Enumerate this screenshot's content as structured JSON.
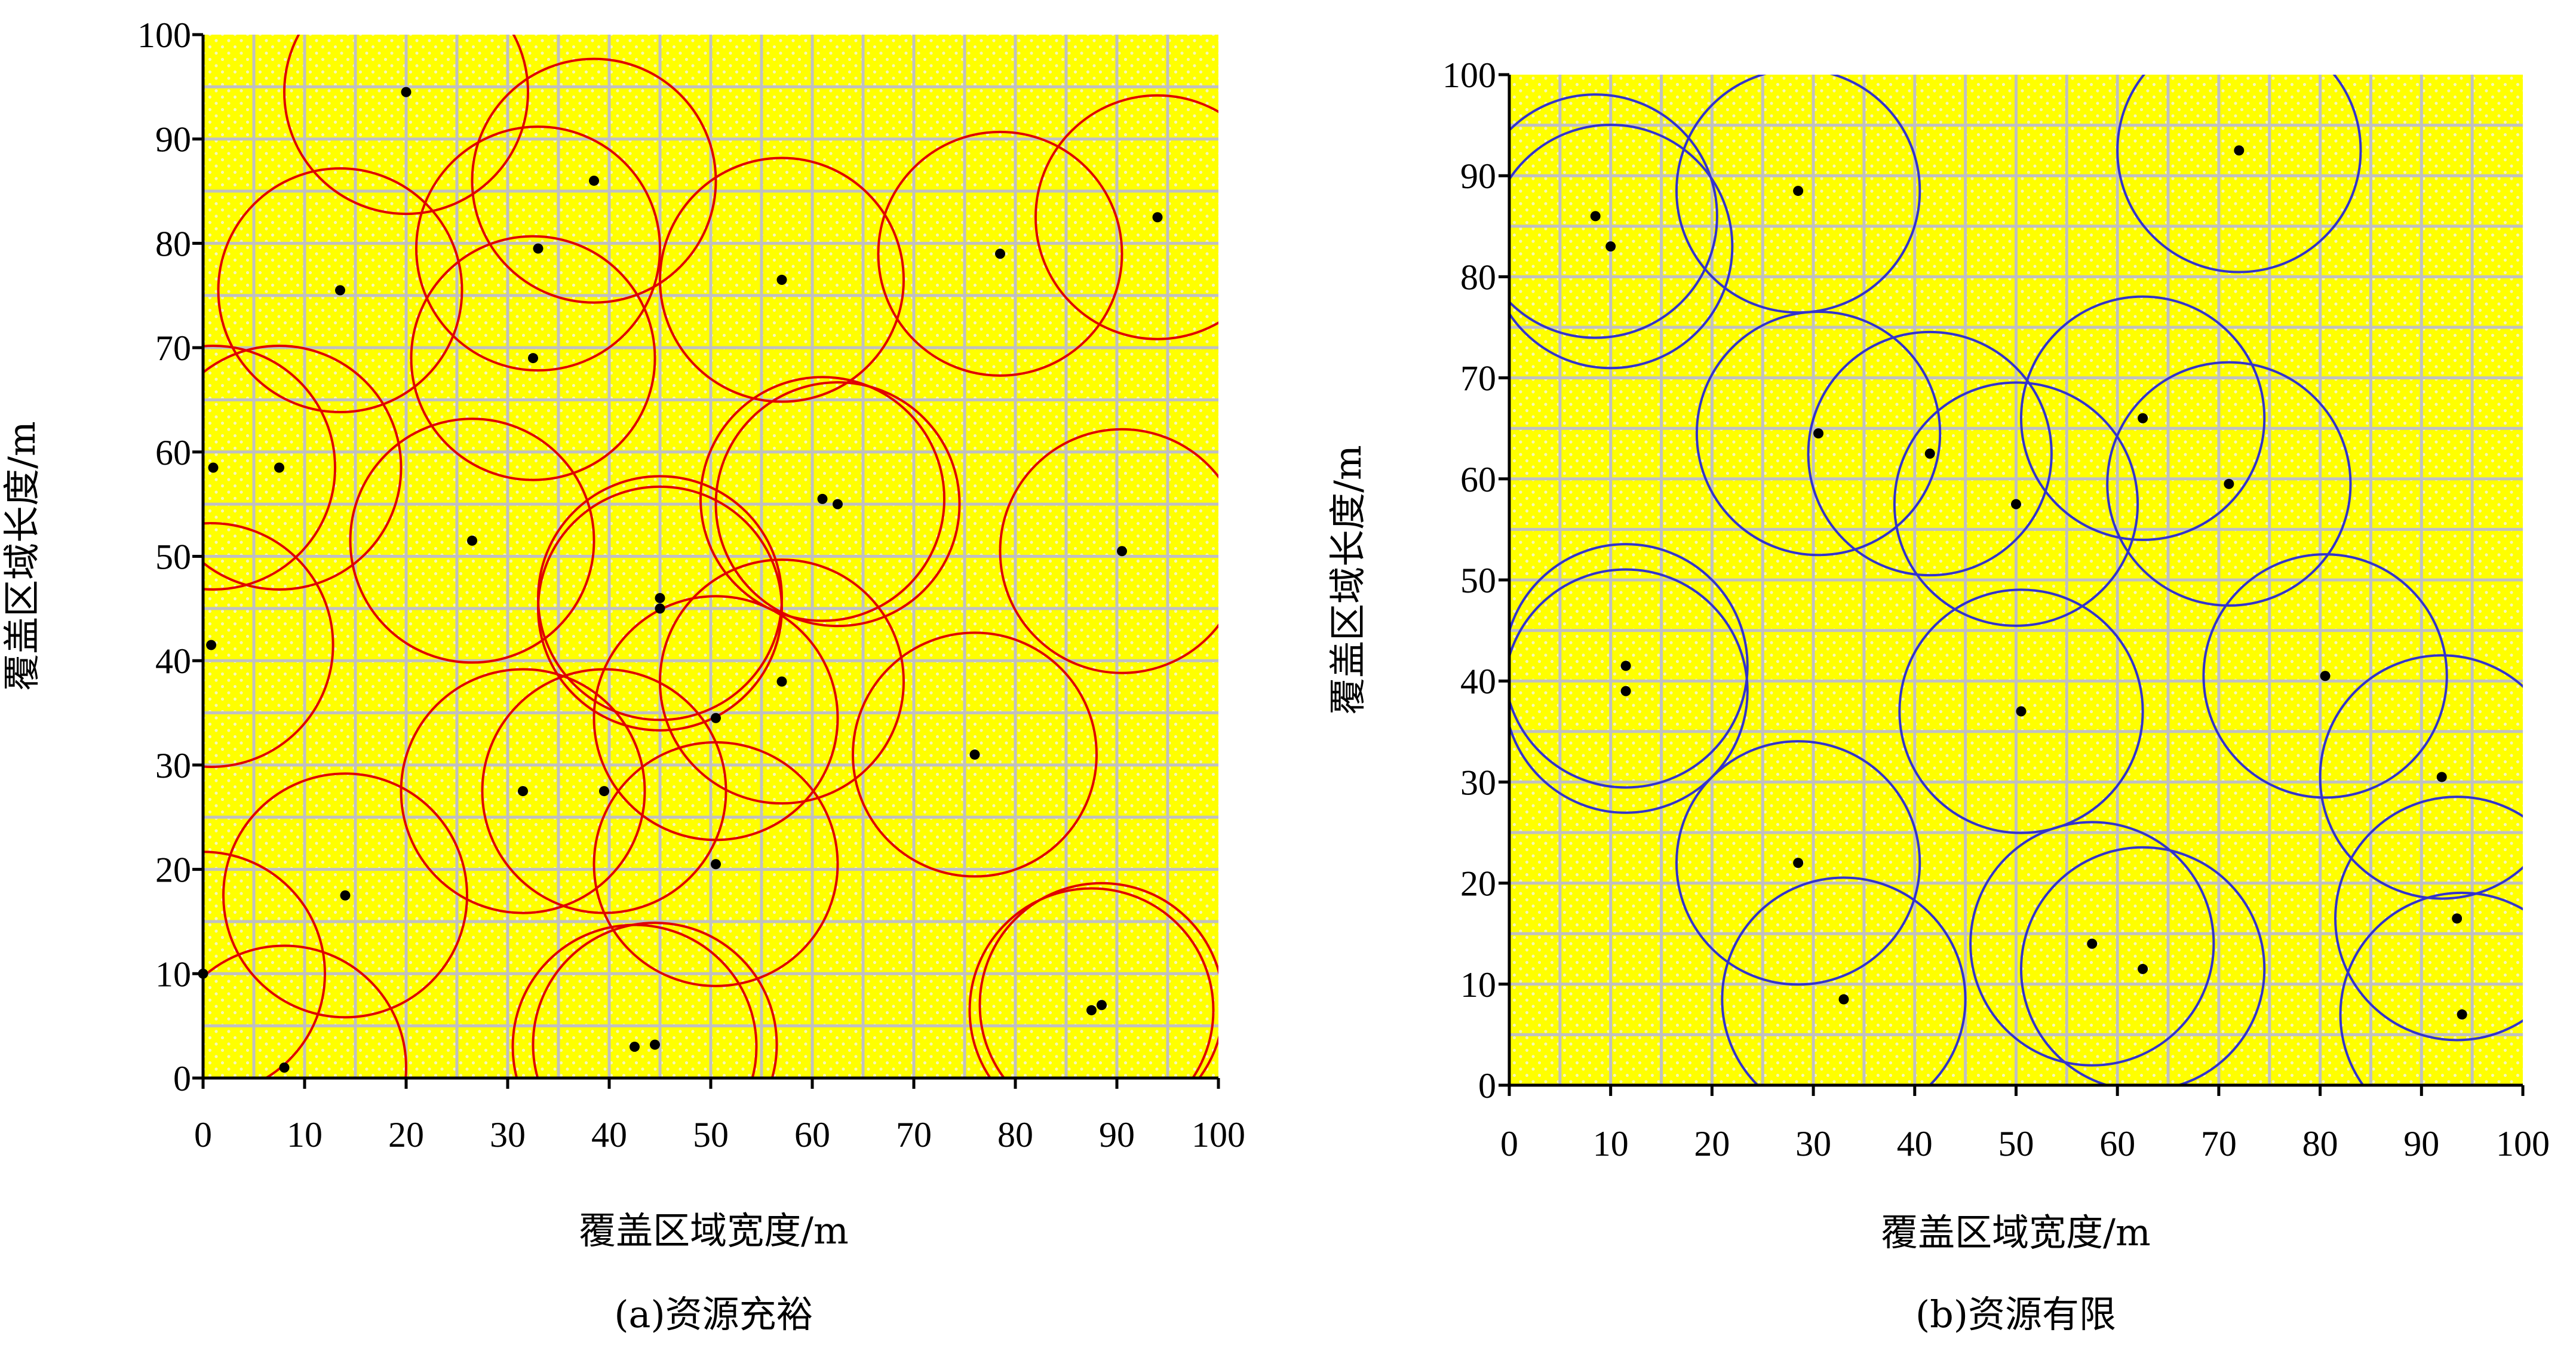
{
  "chart_data": [
    {
      "type": "scatter",
      "caption": "(a)资源充裕",
      "xlabel": "覆盖区域宽度/m",
      "ylabel": "覆盖区域长度/m",
      "xlim": [
        0,
        100
      ],
      "ylim": [
        0,
        100
      ],
      "x_ticks": [
        "0",
        "10",
        "20",
        "30",
        "40",
        "50",
        "60",
        "70",
        "80",
        "90",
        "100"
      ],
      "y_ticks": [
        "0",
        "10",
        "20",
        "30",
        "40",
        "50",
        "60",
        "70",
        "80",
        "90",
        "100"
      ],
      "grid": true,
      "plot_background": "#ffff00",
      "circle_color": "#e00000",
      "point_color": "#000000",
      "coverage_radius": 12,
      "points": [
        {
          "x": 20,
          "y": 94.5
        },
        {
          "x": 38.5,
          "y": 86
        },
        {
          "x": 94,
          "y": 82.5
        },
        {
          "x": 33,
          "y": 79.5
        },
        {
          "x": 78.5,
          "y": 79
        },
        {
          "x": 13.5,
          "y": 75.5
        },
        {
          "x": 57,
          "y": 76.5
        },
        {
          "x": 32.5,
          "y": 69
        },
        {
          "x": 1,
          "y": 58.5
        },
        {
          "x": 7.5,
          "y": 58.5
        },
        {
          "x": 26.5,
          "y": 51.5
        },
        {
          "x": 61,
          "y": 55.5
        },
        {
          "x": 62.5,
          "y": 55
        },
        {
          "x": 90.5,
          "y": 50.5
        },
        {
          "x": 45,
          "y": 46
        },
        {
          "x": 45,
          "y": 45
        },
        {
          "x": 0.8,
          "y": 41.5
        },
        {
          "x": 57,
          "y": 38
        },
        {
          "x": 50.5,
          "y": 34.5
        },
        {
          "x": 76,
          "y": 31
        },
        {
          "x": 31.5,
          "y": 27.5
        },
        {
          "x": 39.5,
          "y": 27.5
        },
        {
          "x": 50.5,
          "y": 20.5
        },
        {
          "x": 14,
          "y": 17.5
        },
        {
          "x": 87.5,
          "y": 6.5
        },
        {
          "x": 88.5,
          "y": 7
        },
        {
          "x": 42.5,
          "y": 3
        },
        {
          "x": 44.5,
          "y": 3.2
        },
        {
          "x": 8,
          "y": 1
        },
        {
          "x": 0,
          "y": 10
        }
      ]
    },
    {
      "type": "scatter",
      "caption": "(b)资源有限",
      "xlabel": "覆盖区域宽度/m",
      "ylabel": "覆盖区域长度/m",
      "xlim": [
        0,
        100
      ],
      "ylim": [
        0,
        100
      ],
      "x_ticks": [
        "0",
        "10",
        "20",
        "30",
        "40",
        "50",
        "60",
        "70",
        "80",
        "90",
        "100"
      ],
      "y_ticks": [
        "0",
        "10",
        "20",
        "30",
        "40",
        "50",
        "60",
        "70",
        "80",
        "90",
        "100"
      ],
      "grid": true,
      "plot_background": "#ffff00",
      "circle_color": "#3333cc",
      "point_color": "#000000",
      "coverage_radius": 12,
      "points": [
        {
          "x": 72,
          "y": 92.5
        },
        {
          "x": 28.5,
          "y": 88.5
        },
        {
          "x": 8.5,
          "y": 86
        },
        {
          "x": 10,
          "y": 83
        },
        {
          "x": 62.5,
          "y": 66
        },
        {
          "x": 30.5,
          "y": 64.5
        },
        {
          "x": 41.5,
          "y": 62.5
        },
        {
          "x": 71,
          "y": 59.5
        },
        {
          "x": 50,
          "y": 57.5
        },
        {
          "x": 11.5,
          "y": 41.5
        },
        {
          "x": 11.5,
          "y": 39
        },
        {
          "x": 80.5,
          "y": 40.5
        },
        {
          "x": 50.5,
          "y": 37
        },
        {
          "x": 92,
          "y": 30.5
        },
        {
          "x": 28.5,
          "y": 22
        },
        {
          "x": 93.5,
          "y": 16.5
        },
        {
          "x": 57.5,
          "y": 14
        },
        {
          "x": 62.5,
          "y": 11.5
        },
        {
          "x": 33,
          "y": 8.5
        },
        {
          "x": 94,
          "y": 7
        }
      ]
    }
  ]
}
